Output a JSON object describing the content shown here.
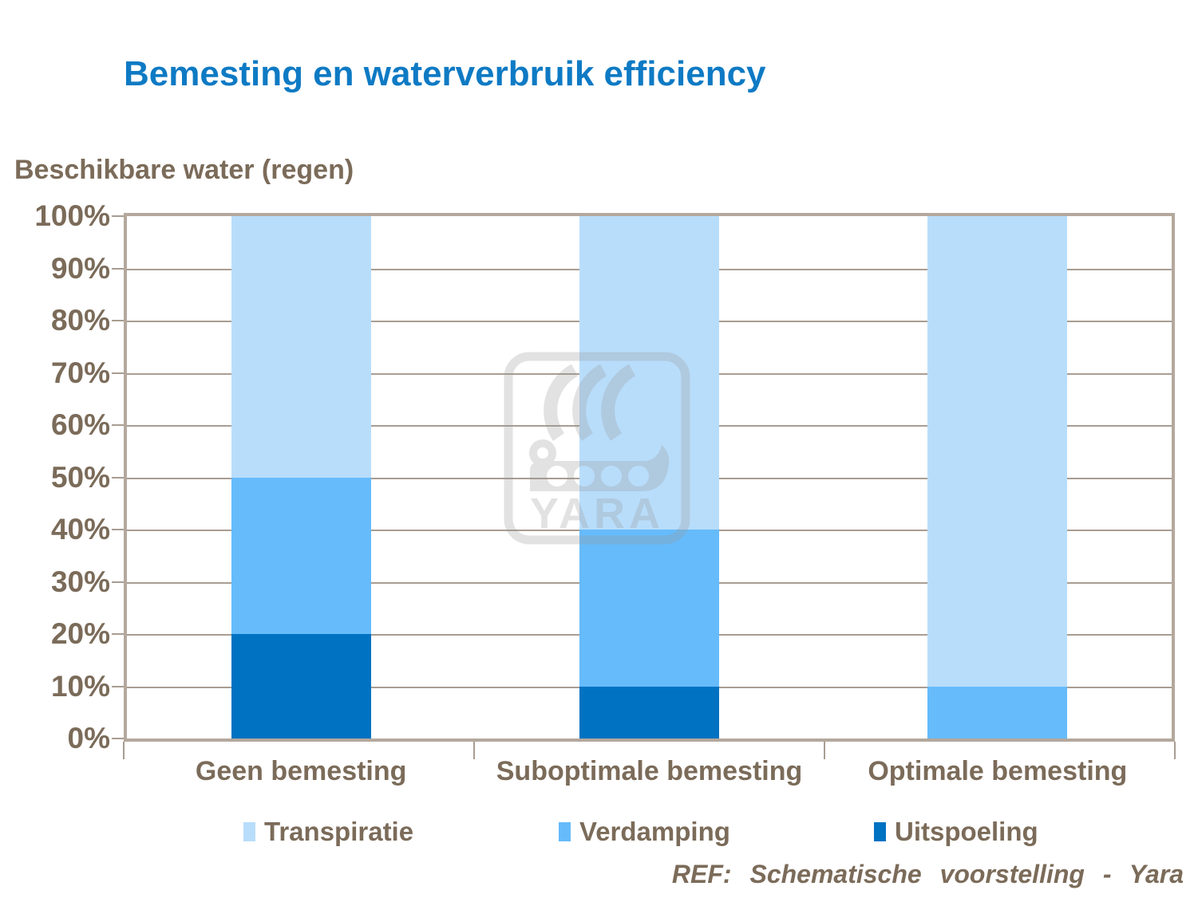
{
  "title": "Bemesting en waterverbruik efficiency",
  "y_axis_title": "Beschikbare water (regen)",
  "footer": {
    "text": "REF: Schematische voorstelling - Yara"
  },
  "watermark_text": "YARA",
  "colors": {
    "title_blue": "#0e7ac4",
    "text_brown": "#7b6b59",
    "gridline": "#a89d92",
    "plot_border": "#b4a89d",
    "transpiratie": "#b8ddfb",
    "verdamping": "#66bbfb",
    "uitspoeling": "#0072c2"
  },
  "chart_data": {
    "type": "bar",
    "stacked": true,
    "title": "Bemesting en waterverbruik efficiency",
    "ylabel": "Beschikbare water (regen)",
    "categories": [
      "Geen bemesting",
      "Suboptimale bemesting",
      "Optimale bemesting"
    ],
    "series": [
      {
        "name": "Uitspoeling",
        "color": "#0072c2",
        "values": [
          20,
          10,
          0
        ]
      },
      {
        "name": "Verdamping",
        "color": "#66bbfb",
        "values": [
          30,
          30,
          10
        ]
      },
      {
        "name": "Transpiratie",
        "color": "#b8ddfb",
        "values": [
          50,
          60,
          90
        ]
      }
    ],
    "legend_order": [
      "Transpiratie",
      "Verdamping",
      "Uitspoeling"
    ],
    "legend_position": "bottom",
    "ylim": [
      0,
      100
    ],
    "ytick_step": 10,
    "ytick_labels": [
      "0%",
      "10%",
      "20%",
      "30%",
      "40%",
      "50%",
      "60%",
      "70%",
      "80%",
      "90%",
      "100%"
    ],
    "grid": true
  }
}
